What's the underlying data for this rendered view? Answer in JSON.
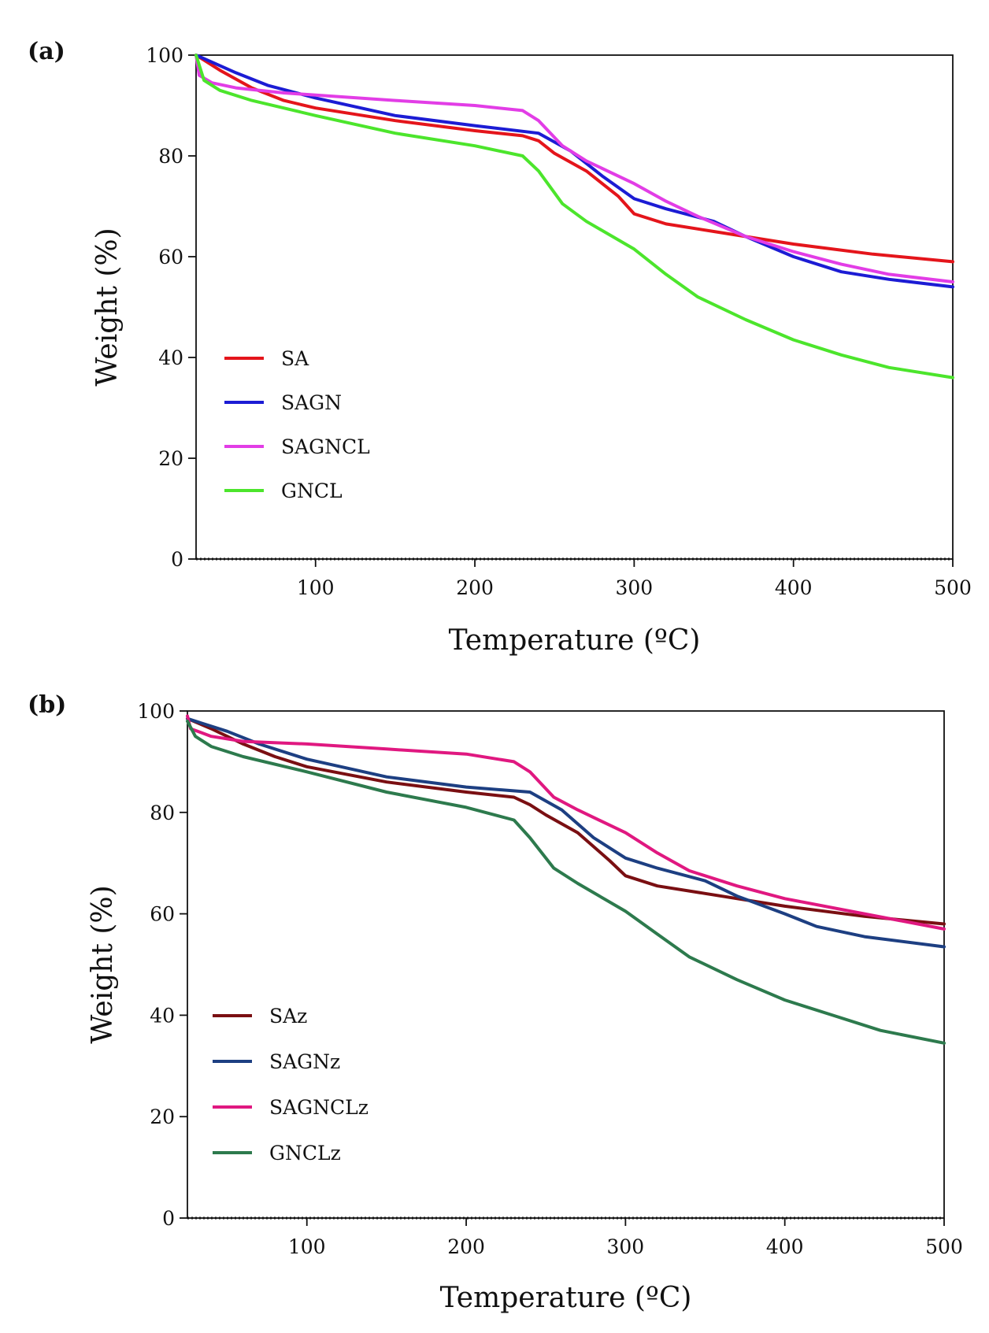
{
  "chart_data": [
    {
      "type": "line",
      "panel_label": "(a)",
      "xlabel": "Temperature (ºC)",
      "ylabel": "Weight (%)",
      "xlim": [
        25,
        500
      ],
      "ylim": [
        0,
        100
      ],
      "x_ticks": [
        "100",
        "200",
        "300",
        "400",
        "500"
      ],
      "y_ticks": [
        "0",
        "20",
        "40",
        "60",
        "80",
        "100"
      ],
      "legend_position": "lower-left",
      "series": [
        {
          "name": "SA",
          "color": "#e4151b",
          "points": [
            [
              25,
              100
            ],
            [
              40,
              97
            ],
            [
              60,
              93.5
            ],
            [
              80,
              91
            ],
            [
              100,
              89.5
            ],
            [
              150,
              87
            ],
            [
              200,
              85
            ],
            [
              230,
              84
            ],
            [
              240,
              83
            ],
            [
              250,
              80.5
            ],
            [
              270,
              77
            ],
            [
              290,
              72
            ],
            [
              300,
              68.5
            ],
            [
              320,
              66.5
            ],
            [
              350,
              65
            ],
            [
              400,
              62.5
            ],
            [
              450,
              60.5
            ],
            [
              500,
              59
            ]
          ]
        },
        {
          "name": "SAGN",
          "color": "#1c1cd4",
          "points": [
            [
              25,
              100
            ],
            [
              50,
              96.5
            ],
            [
              70,
              94
            ],
            [
              100,
              91.5
            ],
            [
              150,
              88
            ],
            [
              200,
              86
            ],
            [
              240,
              84.5
            ],
            [
              260,
              81
            ],
            [
              280,
              76
            ],
            [
              300,
              71.5
            ],
            [
              320,
              69.5
            ],
            [
              350,
              67
            ],
            [
              370,
              64
            ],
            [
              400,
              60
            ],
            [
              430,
              57
            ],
            [
              460,
              55.5
            ],
            [
              500,
              54
            ]
          ]
        },
        {
          "name": "SAGNCL",
          "color": "#e23de6",
          "points": [
            [
              25,
              100
            ],
            [
              27,
              96
            ],
            [
              35,
              94.5
            ],
            [
              50,
              93.5
            ],
            [
              80,
              92.5
            ],
            [
              150,
              91
            ],
            [
              200,
              90
            ],
            [
              230,
              89
            ],
            [
              240,
              87
            ],
            [
              255,
              82
            ],
            [
              270,
              79
            ],
            [
              300,
              74.5
            ],
            [
              320,
              71
            ],
            [
              340,
              68
            ],
            [
              370,
              64
            ],
            [
              400,
              61
            ],
            [
              430,
              58.5
            ],
            [
              460,
              56.5
            ],
            [
              500,
              55
            ]
          ]
        },
        {
          "name": "GNCL",
          "color": "#4ce52c",
          "points": [
            [
              25,
              100
            ],
            [
              30,
              95
            ],
            [
              40,
              93
            ],
            [
              60,
              91
            ],
            [
              100,
              88
            ],
            [
              150,
              84.5
            ],
            [
              200,
              82
            ],
            [
              230,
              80
            ],
            [
              240,
              77
            ],
            [
              255,
              70.5
            ],
            [
              270,
              67
            ],
            [
              300,
              61.5
            ],
            [
              320,
              56.5
            ],
            [
              340,
              52
            ],
            [
              370,
              47.5
            ],
            [
              400,
              43.5
            ],
            [
              430,
              40.5
            ],
            [
              460,
              38
            ],
            [
              500,
              36
            ]
          ]
        }
      ]
    },
    {
      "type": "line",
      "panel_label": "(b)",
      "xlabel": "Temperature (ºC)",
      "ylabel": "Weight (%)",
      "xlim": [
        25,
        500
      ],
      "ylim": [
        0,
        100
      ],
      "x_ticks": [
        "100",
        "200",
        "300",
        "400",
        "500"
      ],
      "y_ticks": [
        "0",
        "20",
        "40",
        "60",
        "80",
        "100"
      ],
      "legend_position": "lower-left",
      "series": [
        {
          "name": "SAz",
          "color": "#7a0f12",
          "points": [
            [
              25,
              98.5
            ],
            [
              40,
              96.5
            ],
            [
              60,
              93.5
            ],
            [
              80,
              91
            ],
            [
              100,
              89
            ],
            [
              150,
              86
            ],
            [
              200,
              84
            ],
            [
              230,
              83
            ],
            [
              240,
              81.5
            ],
            [
              250,
              79.5
            ],
            [
              270,
              76
            ],
            [
              290,
              70.5
            ],
            [
              300,
              67.5
            ],
            [
              320,
              65.5
            ],
            [
              350,
              64
            ],
            [
              400,
              61.5
            ],
            [
              450,
              59.5
            ],
            [
              500,
              58
            ]
          ]
        },
        {
          "name": "SAGNz",
          "color": "#1d3f82",
          "points": [
            [
              25,
              98.5
            ],
            [
              50,
              96
            ],
            [
              70,
              93.5
            ],
            [
              100,
              90.5
            ],
            [
              150,
              87
            ],
            [
              200,
              85
            ],
            [
              240,
              84
            ],
            [
              260,
              80.5
            ],
            [
              280,
              75
            ],
            [
              300,
              71
            ],
            [
              320,
              69
            ],
            [
              350,
              66.5
            ],
            [
              370,
              63.5
            ],
            [
              400,
              60
            ],
            [
              420,
              57.5
            ],
            [
              450,
              55.5
            ],
            [
              500,
              53.5
            ]
          ]
        },
        {
          "name": "SAGNCLz",
          "color": "#e01880",
          "points": [
            [
              25,
              99
            ],
            [
              27,
              96.5
            ],
            [
              40,
              95
            ],
            [
              60,
              94
            ],
            [
              100,
              93.5
            ],
            [
              150,
              92.5
            ],
            [
              200,
              91.5
            ],
            [
              230,
              90
            ],
            [
              240,
              88
            ],
            [
              255,
              83
            ],
            [
              270,
              80.5
            ],
            [
              300,
              76
            ],
            [
              320,
              72
            ],
            [
              340,
              68.5
            ],
            [
              370,
              65.5
            ],
            [
              400,
              63
            ],
            [
              450,
              60
            ],
            [
              500,
              57
            ]
          ]
        },
        {
          "name": "GNCLz",
          "color": "#2d7a4d",
          "points": [
            [
              25,
              98
            ],
            [
              30,
              95
            ],
            [
              40,
              93
            ],
            [
              60,
              91
            ],
            [
              100,
              88
            ],
            [
              150,
              84
            ],
            [
              200,
              81
            ],
            [
              230,
              78.5
            ],
            [
              240,
              75
            ],
            [
              255,
              69
            ],
            [
              270,
              66
            ],
            [
              300,
              60.5
            ],
            [
              320,
              56
            ],
            [
              340,
              51.5
            ],
            [
              370,
              47
            ],
            [
              400,
              43
            ],
            [
              430,
              40
            ],
            [
              460,
              37
            ],
            [
              500,
              34.5
            ]
          ]
        }
      ]
    }
  ]
}
